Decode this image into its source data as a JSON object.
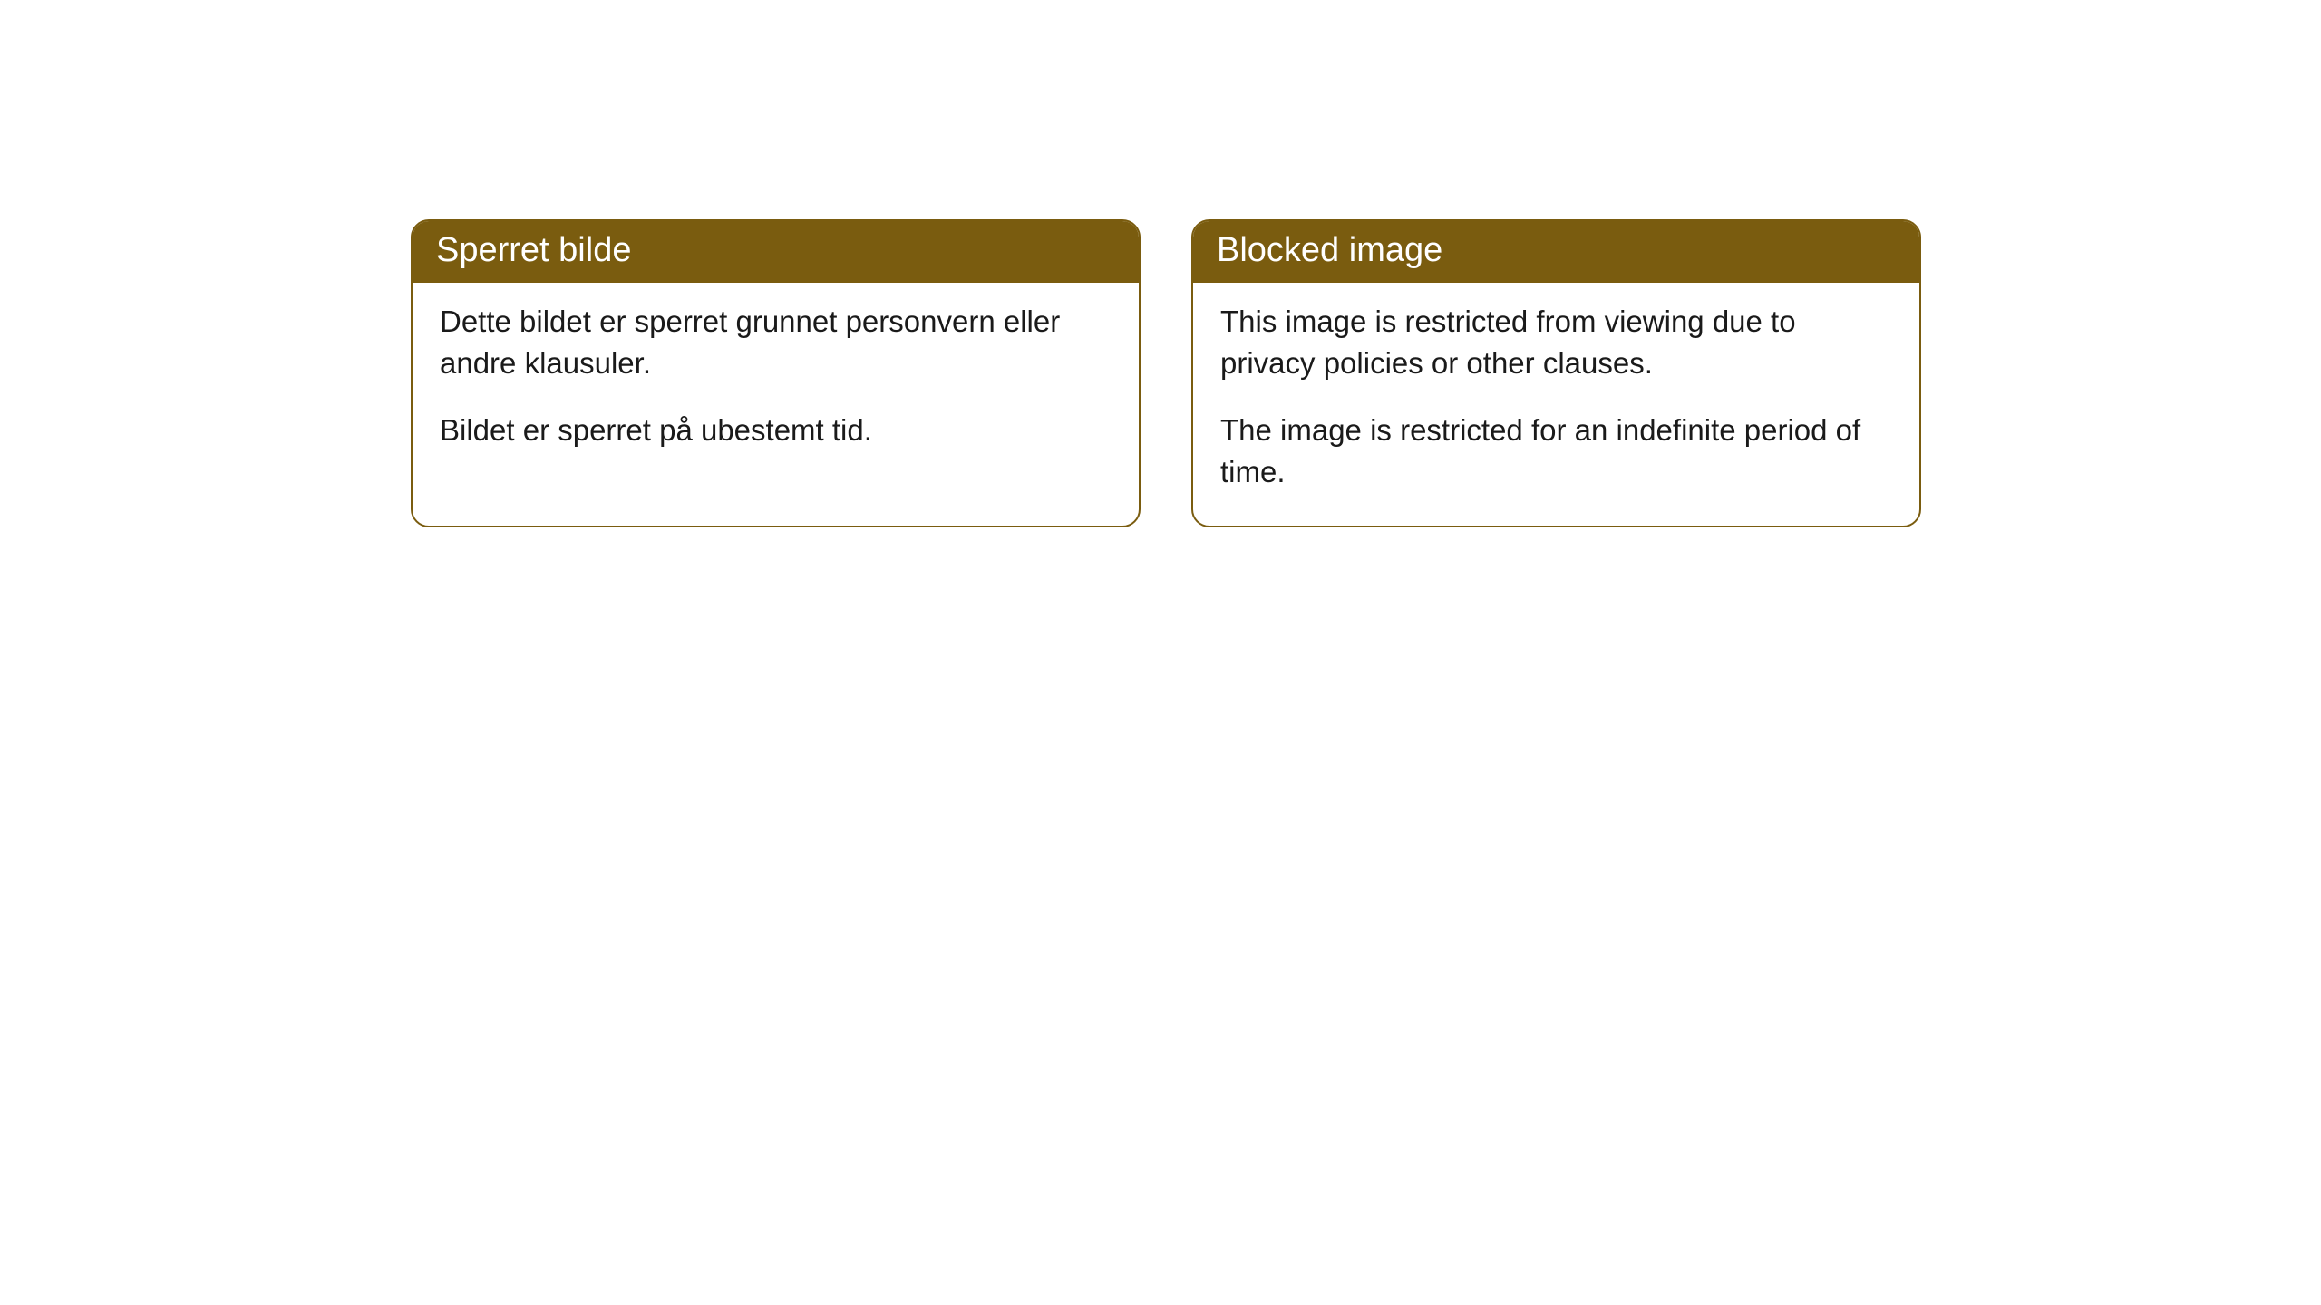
{
  "cards": [
    {
      "title": "Sperret bilde",
      "paragraph1": "Dette bildet er sperret grunnet personvern eller andre klausuler.",
      "paragraph2": "Bildet er sperret på ubestemt tid."
    },
    {
      "title": "Blocked image",
      "paragraph1": "This image is restricted from viewing due to privacy policies or other clauses.",
      "paragraph2": "The image is restricted for an indefinite period of time."
    }
  ],
  "styling": {
    "header_background": "#7a5c0f",
    "header_text_color": "#ffffff",
    "body_text_color": "#1a1a1a",
    "card_border_color": "#7a5c0f",
    "card_background": "#ffffff",
    "page_background": "#ffffff",
    "header_fontsize": 38,
    "body_fontsize": 33,
    "border_radius": 20
  }
}
